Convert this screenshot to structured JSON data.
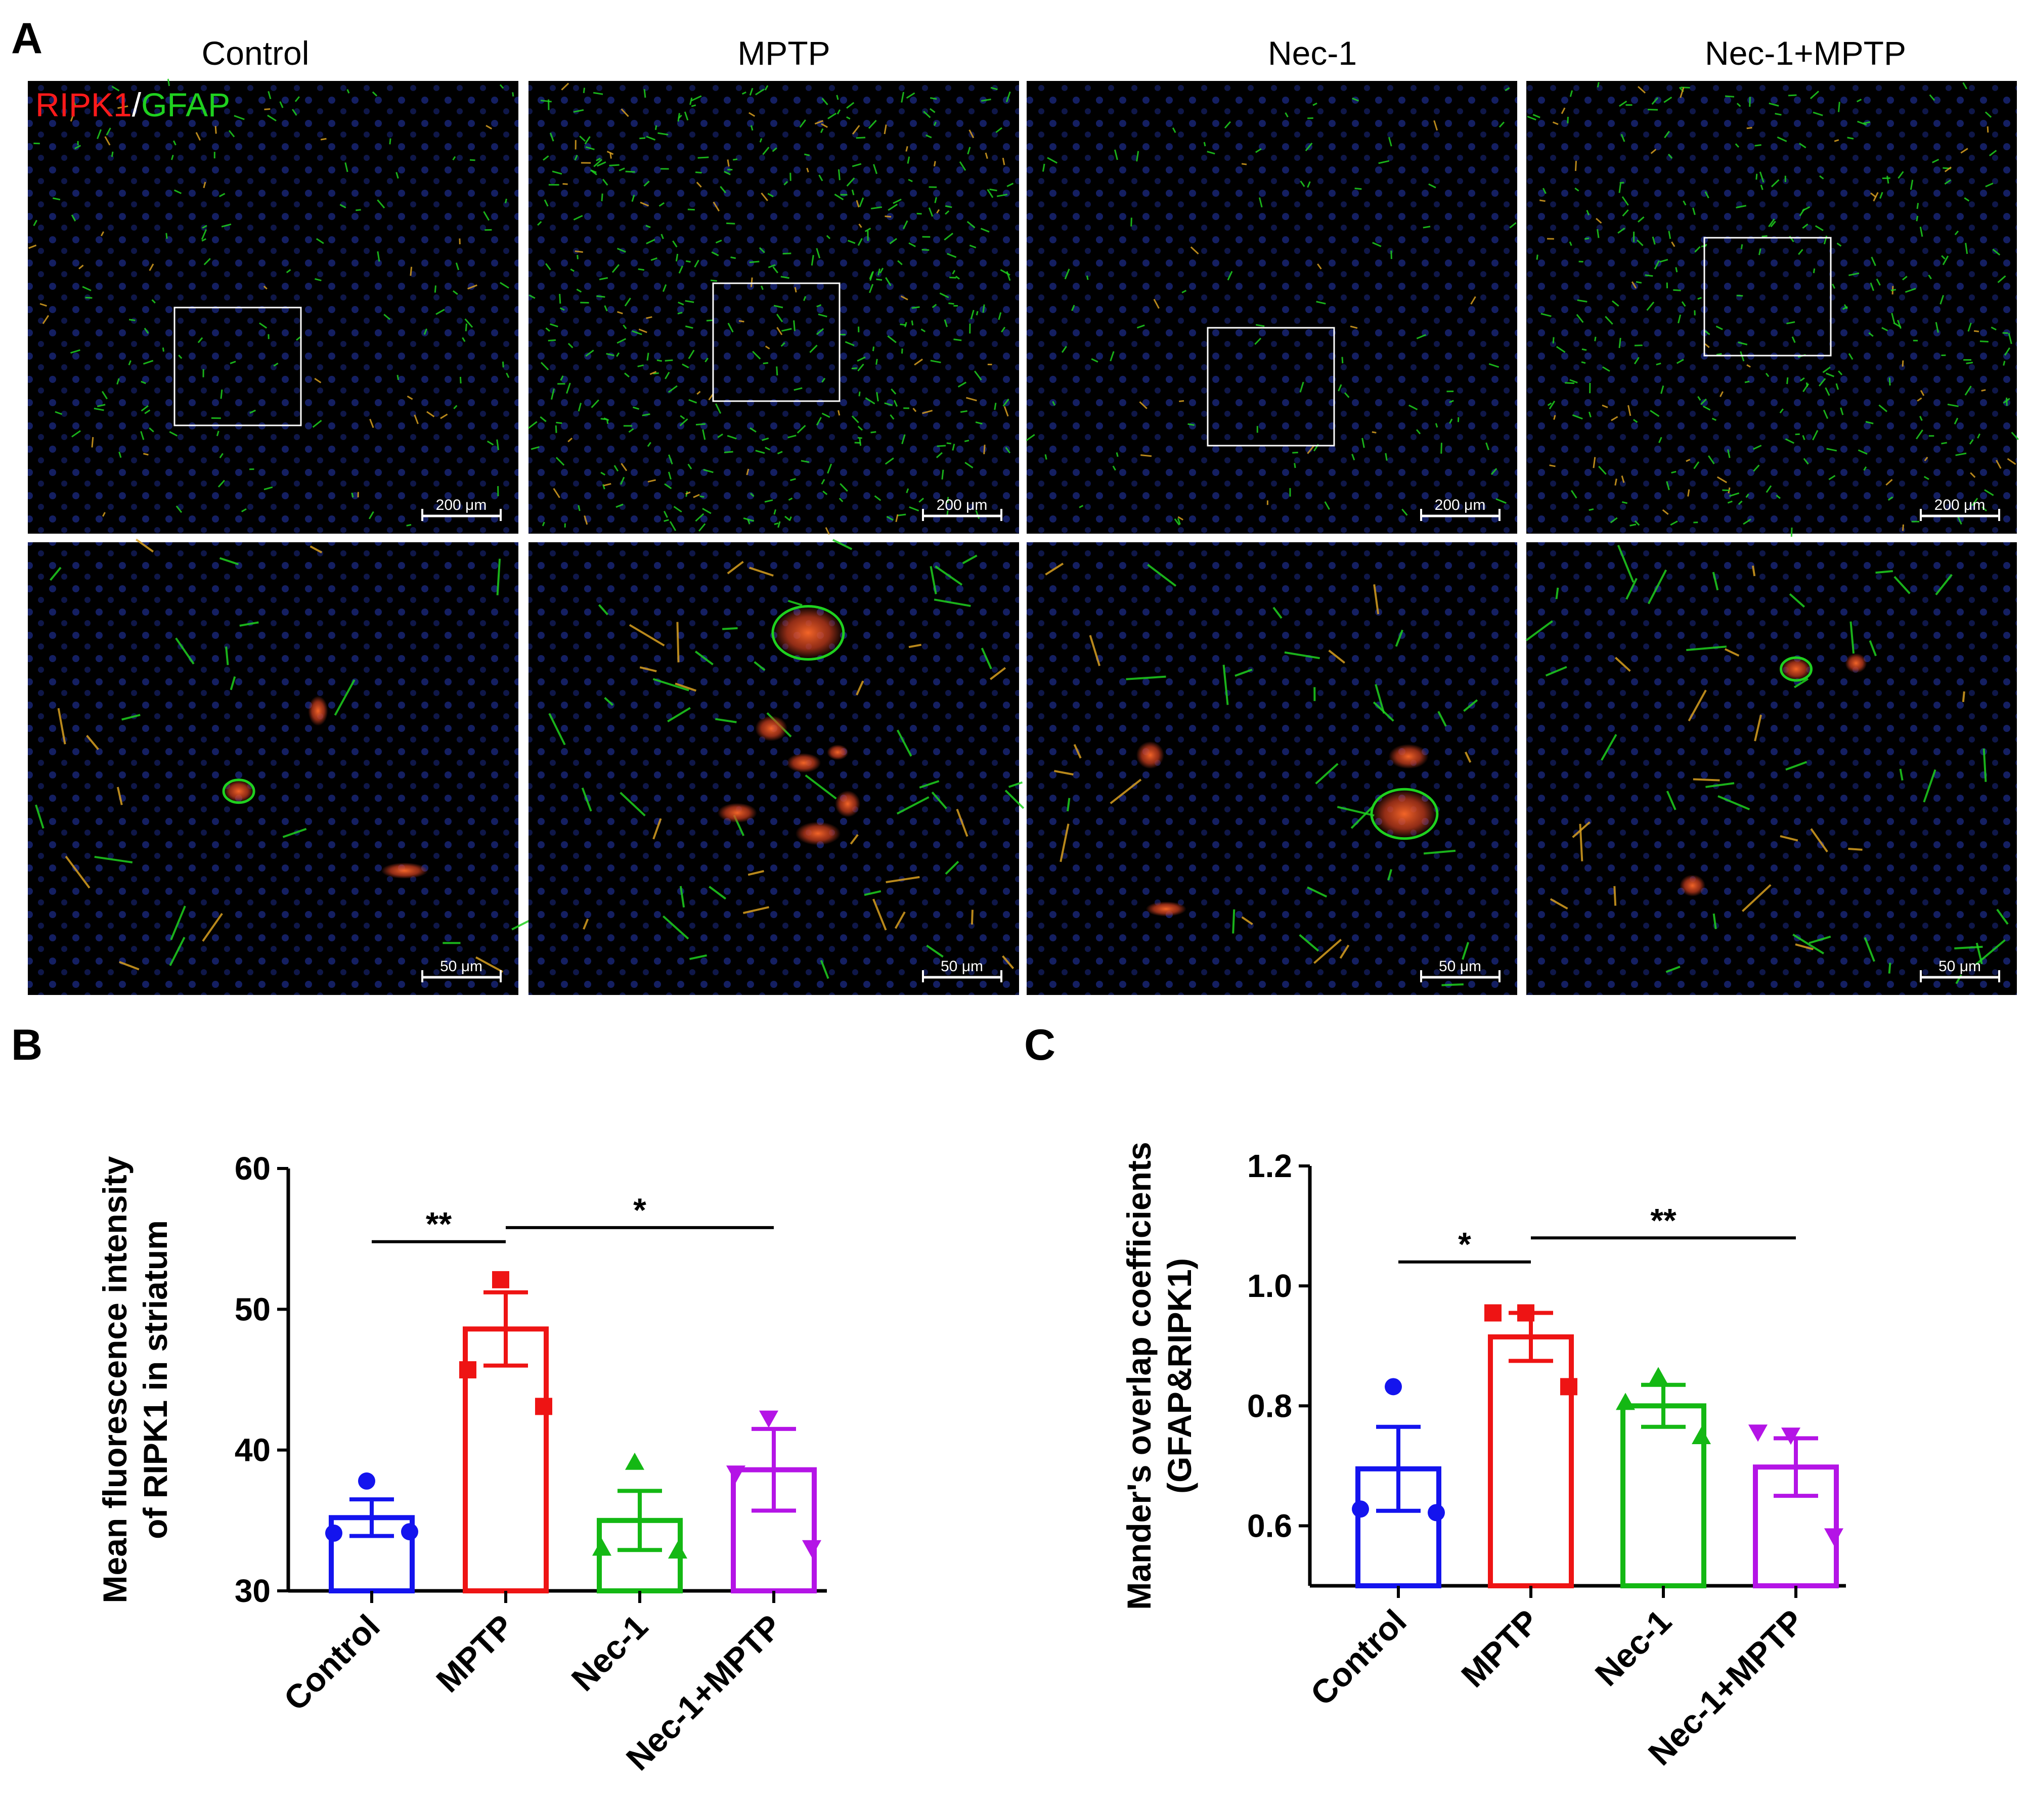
{
  "panel_letters": {
    "a": "A",
    "b": "B",
    "c": "C"
  },
  "micrographs": {
    "column_titles": [
      "Control",
      "MPTP",
      "Nec-1",
      "Nec-1+MPTP"
    ],
    "stain_label": {
      "ripk1": "RIPK1",
      "separator": "/",
      "gfap": "GFAP"
    },
    "stain_colors": {
      "ripk1": "#ff1a1a",
      "gfap": "#1fd11f",
      "nuclei": "#1a2a8c",
      "background": "#000000"
    },
    "scale_bar_top": "200 μm",
    "scale_bar_bottom": "50 μm"
  },
  "chart_data": [
    {
      "type": "bar",
      "panel": "B",
      "categories": [
        "Control",
        "MPTP",
        "Nec-1",
        "Nec-1+MPTP"
      ],
      "colors": [
        "#1414ee",
        "#ee1414",
        "#14b814",
        "#b414e6"
      ],
      "markers": [
        "circle",
        "square",
        "triangle-up",
        "triangle-down"
      ],
      "values": [
        35.2,
        48.6,
        35.0,
        38.6
      ],
      "errors": [
        1.3,
        2.6,
        2.1,
        2.9
      ],
      "points": [
        [
          37.8,
          34.1,
          34.2
        ],
        [
          52.1,
          45.7,
          43.1
        ],
        [
          39.1,
          33.0,
          32.8
        ],
        [
          42.3,
          38.4,
          33.1
        ]
      ],
      "ylabel": [
        "Mean fluorescence intensity",
        "of RIPK1 in striatum"
      ],
      "ylim": [
        30,
        60
      ],
      "yticks": [
        30,
        40,
        50,
        60
      ],
      "significance": [
        {
          "from": 0,
          "to": 1,
          "label": "**",
          "y": 54.8
        },
        {
          "from": 1,
          "to": 3,
          "label": "*",
          "y": 55.8
        }
      ]
    },
    {
      "type": "bar",
      "panel": "C",
      "categories": [
        "Control",
        "MPTP",
        "Nec-1",
        "Nec-1+MPTP"
      ],
      "colors": [
        "#1414ee",
        "#ee1414",
        "#14b814",
        "#b414e6"
      ],
      "markers": [
        "circle",
        "square",
        "triangle-up",
        "triangle-down"
      ],
      "values": [
        0.695,
        0.915,
        0.8,
        0.698
      ],
      "errors": [
        0.07,
        0.04,
        0.035,
        0.048
      ],
      "points": [
        [
          0.832,
          0.628,
          0.622
        ],
        [
          0.955,
          0.955,
          0.832
        ],
        [
          0.848,
          0.805,
          0.748
        ],
        [
          0.752,
          0.757,
          0.584
        ]
      ],
      "ylabel": [
        "Mander's overlap coefficients",
        "(GFAP&RIPK1)"
      ],
      "ylim": [
        0.5,
        1.2
      ],
      "yticks": [
        0.6,
        0.8,
        1.0,
        1.2
      ],
      "significance": [
        {
          "from": 0,
          "to": 1,
          "label": "*",
          "y": 1.04
        },
        {
          "from": 1,
          "to": 3,
          "label": "**",
          "y": 1.08
        }
      ]
    }
  ]
}
